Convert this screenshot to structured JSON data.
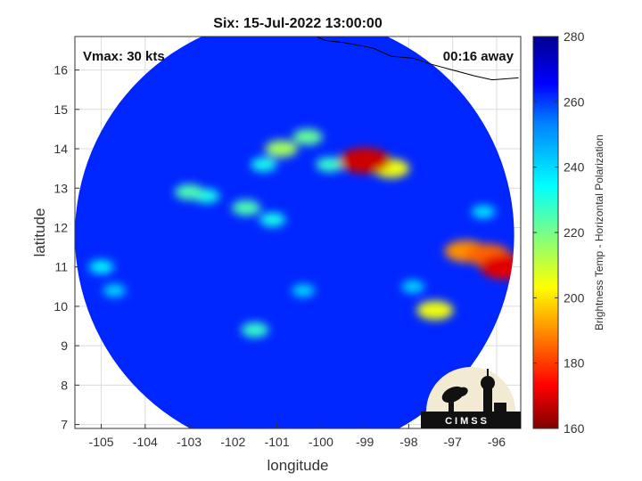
{
  "chart_data": {
    "type": "heatmap",
    "title": "Six: 15-Jul-2022 13:00:00",
    "xlabel": "longitude",
    "ylabel": "latitude",
    "xlim": [
      -105.6,
      -95.45
    ],
    "ylim": [
      6.9,
      16.85
    ],
    "xticks": [
      -105,
      -104,
      -103,
      -102,
      -101,
      -100,
      -99,
      -98,
      -97,
      -96
    ],
    "yticks": [
      7,
      8,
      9,
      10,
      11,
      12,
      13,
      14,
      15,
      16
    ],
    "grid": true,
    "annotation_left": "Vmax: 30 kts",
    "annotation_right": "00:16 away",
    "colorbar": {
      "label": "Brightness Temp - Horizontal Polarization",
      "range": [
        160,
        280
      ],
      "ticks": [
        160,
        180,
        200,
        220,
        240,
        260,
        280
      ]
    },
    "swath": {
      "center": [
        -100.6,
        11.8
      ],
      "radius_deg": 5.0
    },
    "background_value": 262,
    "features": [
      {
        "lon": -99.0,
        "lat": 13.7,
        "value": 168
      },
      {
        "lon": -98.4,
        "lat": 13.5,
        "value": 205
      },
      {
        "lon": -99.8,
        "lat": 13.6,
        "value": 228
      },
      {
        "lon": -100.3,
        "lat": 14.3,
        "value": 222
      },
      {
        "lon": -100.9,
        "lat": 14.0,
        "value": 215
      },
      {
        "lon": -101.3,
        "lat": 13.6,
        "value": 232
      },
      {
        "lon": -101.7,
        "lat": 12.5,
        "value": 225
      },
      {
        "lon": -101.1,
        "lat": 12.2,
        "value": 232
      },
      {
        "lon": -102.6,
        "lat": 12.8,
        "value": 232
      },
      {
        "lon": -103.0,
        "lat": 12.9,
        "value": 225
      },
      {
        "lon": -95.8,
        "lat": 11.0,
        "value": 170
      },
      {
        "lon": -96.2,
        "lat": 11.3,
        "value": 185
      },
      {
        "lon": -96.7,
        "lat": 11.4,
        "value": 190
      },
      {
        "lon": -97.4,
        "lat": 9.9,
        "value": 205
      },
      {
        "lon": -101.5,
        "lat": 9.4,
        "value": 228
      },
      {
        "lon": -105.0,
        "lat": 11.0,
        "value": 235
      },
      {
        "lon": -104.7,
        "lat": 10.4,
        "value": 240
      },
      {
        "lon": -100.4,
        "lat": 10.4,
        "value": 240
      },
      {
        "lon": -97.9,
        "lat": 10.5,
        "value": 240
      },
      {
        "lon": -96.3,
        "lat": 12.4,
        "value": 238
      }
    ],
    "coastline": [
      [
        -100.2,
        16.9
      ],
      [
        -99.9,
        16.75
      ],
      [
        -99.5,
        16.7
      ],
      [
        -99.0,
        16.6
      ],
      [
        -98.8,
        16.55
      ],
      [
        -98.4,
        16.35
      ],
      [
        -97.9,
        16.3
      ],
      [
        -97.5,
        16.15
      ],
      [
        -97.0,
        16.0
      ],
      [
        -96.5,
        15.85
      ],
      [
        -96.1,
        15.75
      ],
      [
        -95.5,
        15.8
      ]
    ]
  }
}
